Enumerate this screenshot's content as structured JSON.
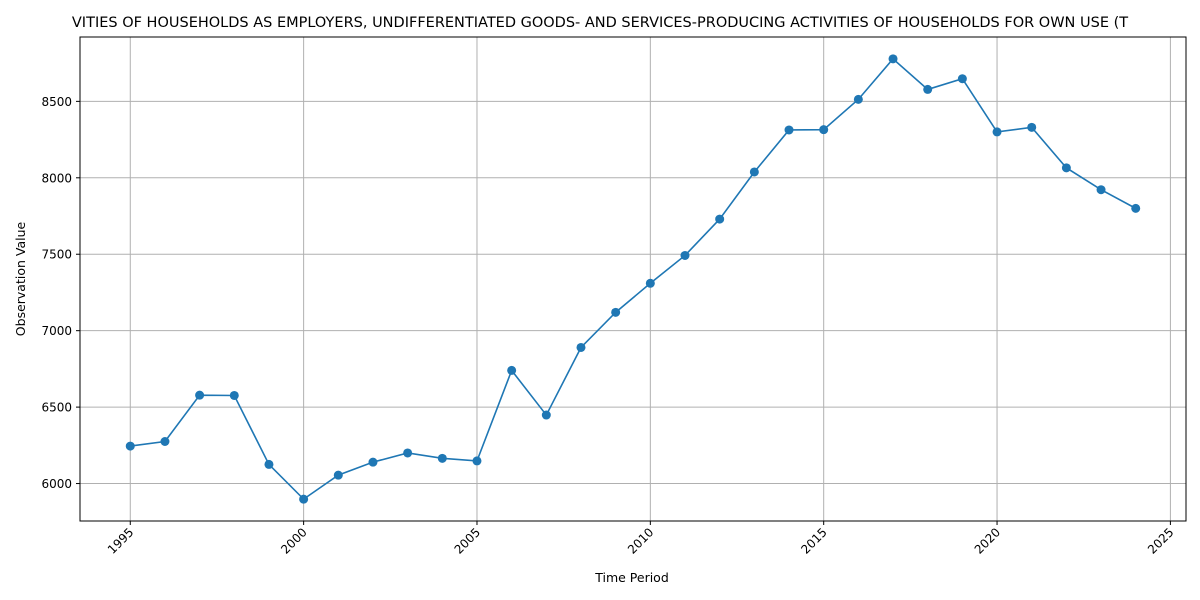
{
  "chart_data": {
    "type": "line",
    "title": "VITIES OF HOUSEHOLDS AS EMPLOYERS, UNDIFFERENTIATED GOODS- AND SERVICES-PRODUCING ACTIVITIES OF HOUSEHOLDS FOR OWN USE (T",
    "xlabel": "Time Period",
    "ylabel": "Observation Value",
    "x": [
      1995,
      1996,
      1997,
      1998,
      1999,
      2000,
      2001,
      2002,
      2003,
      2004,
      2005,
      2006,
      2007,
      2008,
      2009,
      2010,
      2011,
      2012,
      2013,
      2014,
      2015,
      2016,
      2017,
      2018,
      2019,
      2020,
      2021,
      2022,
      2023,
      2024
    ],
    "values": [
      6245,
      6275,
      6578,
      6576,
      6125,
      5898,
      6055,
      6140,
      6200,
      6165,
      6148,
      6740,
      6448,
      6890,
      7120,
      7310,
      7492,
      7730,
      8038,
      8313,
      8315,
      8513,
      8778,
      8578,
      8648,
      8300,
      8330,
      8065,
      7922,
      7800
    ],
    "xlim": [
      1993.55,
      2025.45
    ],
    "ylim": [
      5755,
      8921
    ],
    "xticks": [
      1995,
      2000,
      2005,
      2010,
      2015,
      2020,
      2025
    ],
    "yticks": [
      6000,
      6500,
      7000,
      7500,
      8000,
      8500
    ],
    "grid": true,
    "line_color": "#1f77b4",
    "grid_color": "#b0b0b0"
  }
}
